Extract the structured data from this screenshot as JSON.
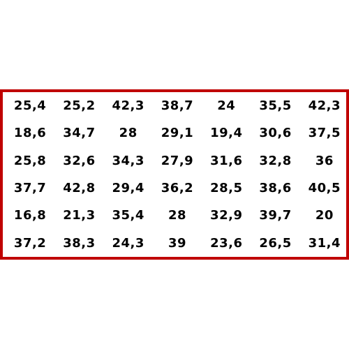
{
  "colors": {
    "border": "#c00000",
    "text": "#000000",
    "background": "#ffffff"
  },
  "table": {
    "rows": [
      [
        "25,4",
        "25,2",
        "42,3",
        "38,7",
        "24",
        "35,5",
        "42,3"
      ],
      [
        "18,6",
        "34,7",
        "28",
        "29,1",
        "19,4",
        "30,6",
        "37,5"
      ],
      [
        "25,8",
        "32,6",
        "34,3",
        "27,9",
        "31,6",
        "32,8",
        "36"
      ],
      [
        "37,7",
        "42,8",
        "29,4",
        "36,2",
        "28,5",
        "38,6",
        "40,5"
      ],
      [
        "16,8",
        "21,3",
        "35,4",
        "28",
        "32,9",
        "39,7",
        "20"
      ],
      [
        "37,2",
        "38,3",
        "24,3",
        "39",
        "23,6",
        "26,5",
        "31,4"
      ]
    ]
  }
}
